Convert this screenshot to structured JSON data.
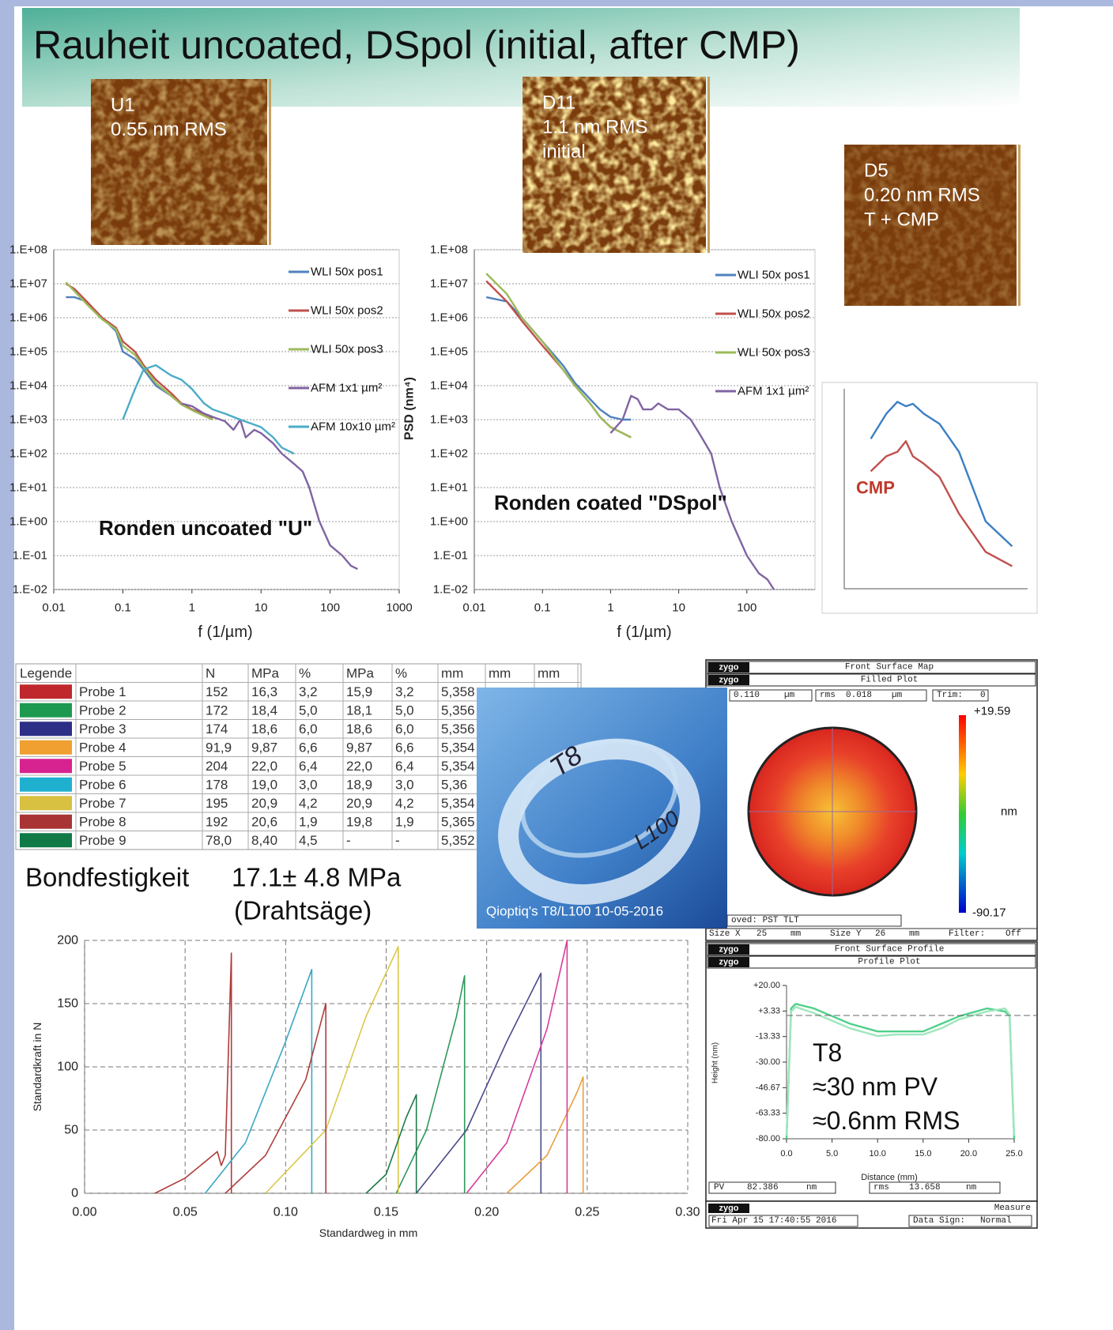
{
  "title": "Rauheit uncoated, DSpol (initial, after CMP)",
  "afm_images": [
    {
      "lines": [
        "U1",
        "0.55 nm RMS"
      ]
    },
    {
      "lines": [
        "D11",
        "1.1 nm RMS",
        "initial"
      ]
    },
    {
      "lines": [
        "D5",
        "0.20 nm RMS",
        "T + CMP"
      ]
    }
  ],
  "chart_data": [
    {
      "type": "line",
      "xscale": "log",
      "yscale": "log",
      "grid": "y",
      "legend": "right",
      "xlabel": "f (1/µm)",
      "annotation": [
        "Ronden uncoated \"U\""
      ],
      "xlim": [
        0.01,
        1000
      ],
      "ylim": [
        0.01,
        100000000
      ],
      "xticks": [
        0.01,
        0.1,
        1,
        10,
        100,
        1000
      ],
      "yticks": [
        {
          "value": 100000000,
          "label": "1.E+08"
        },
        {
          "value": 10000000,
          "label": "1.E+07"
        },
        {
          "value": 1000000,
          "label": "1.E+06"
        },
        {
          "value": 100000,
          "label": "1.E+05"
        },
        {
          "value": 10000,
          "label": "1.E+04"
        },
        {
          "value": 1000,
          "label": "1.E+03"
        },
        {
          "value": 100,
          "label": "1.E+02"
        },
        {
          "value": 10,
          "label": "1.E+01"
        },
        {
          "value": 1,
          "label": "1.E+00"
        },
        {
          "value": 0.1,
          "label": "1.E-01"
        },
        {
          "value": 0.01,
          "label": "1.E-02"
        }
      ],
      "series": [
        {
          "name": "WLI 50x pos1",
          "color": "#4f81bd",
          "x": [
            0.015,
            0.02,
            0.03,
            0.05,
            0.08,
            0.1,
            0.15,
            0.2,
            0.3,
            0.5,
            0.7,
            1,
            1.5,
            2
          ],
          "values": [
            4000000,
            4000000,
            3000000,
            1000000,
            400000,
            100000,
            60000,
            30000,
            10000,
            5000,
            3000,
            2000,
            1500,
            1200
          ]
        },
        {
          "name": "WLI 50x pos2",
          "color": "#c0504d",
          "x": [
            0.015,
            0.02,
            0.03,
            0.05,
            0.08,
            0.1,
            0.15,
            0.2,
            0.3,
            0.5,
            0.7,
            1,
            1.5,
            2
          ],
          "values": [
            10000000,
            7000000,
            3000000,
            1000000,
            500000,
            200000,
            100000,
            40000,
            15000,
            6000,
            3000,
            2000,
            1400,
            1100
          ]
        },
        {
          "name": "WLI 50x pos3",
          "color": "#9bbb59",
          "x": [
            0.015,
            0.02,
            0.03,
            0.05,
            0.08,
            0.1,
            0.15,
            0.2,
            0.3,
            0.5,
            0.7,
            1,
            1.5,
            2
          ],
          "values": [
            11000000,
            6000000,
            2500000,
            900000,
            450000,
            150000,
            80000,
            35000,
            12000,
            5000,
            2800,
            1900,
            1300,
            1000
          ]
        },
        {
          "name": "AFM 1x1 µm²",
          "color": "#8064a2",
          "x": [
            0.7,
            1,
            1.5,
            2,
            3,
            4,
            5,
            6,
            8,
            10,
            15,
            20,
            30,
            40,
            50,
            70,
            100,
            150,
            200,
            250
          ],
          "values": [
            3000,
            2500,
            1500,
            1200,
            900,
            500,
            1000,
            300,
            500,
            400,
            200,
            100,
            50,
            30,
            10,
            1,
            0.2,
            0.1,
            0.05,
            0.04
          ]
        },
        {
          "name": "AFM 10x10 µm²",
          "color": "#4bacc6",
          "x": [
            0.1,
            0.15,
            0.2,
            0.3,
            0.5,
            0.7,
            1,
            1.5,
            2,
            3,
            5,
            10,
            15,
            20,
            30
          ],
          "values": [
            1000,
            8000,
            30000,
            40000,
            20000,
            15000,
            8000,
            3000,
            2000,
            1500,
            1000,
            600,
            300,
            150,
            100
          ]
        }
      ]
    },
    {
      "type": "line",
      "xscale": "log",
      "yscale": "log",
      "grid": "y",
      "legend": "right",
      "xlabel": "f (1/µm)",
      "ylabel": "PSD (nm⁴)",
      "annotation": [
        "Ronden coated \"DSpol\""
      ],
      "xlim": [
        0.01,
        1000
      ],
      "ylim": [
        0.01,
        100000000
      ],
      "xticks": [
        0.01,
        0.1,
        1,
        10,
        100
      ],
      "yticks": [
        {
          "value": 100000000,
          "label": "1.E+08"
        },
        {
          "value": 10000000,
          "label": "1.E+07"
        },
        {
          "value": 1000000,
          "label": "1.E+06"
        },
        {
          "value": 100000,
          "label": "1.E+05"
        },
        {
          "value": 10000,
          "label": "1.E+04"
        },
        {
          "value": 1000,
          "label": "1.E+03"
        },
        {
          "value": 100,
          "label": "1.E+02"
        },
        {
          "value": 10,
          "label": "1.E+01"
        },
        {
          "value": 1,
          "label": "1.E+00"
        },
        {
          "value": 0.1,
          "label": "1.E-01"
        },
        {
          "value": 0.01,
          "label": "1.E-02"
        }
      ],
      "series": [
        {
          "name": "WLI 50x pos1",
          "color": "#4f81bd",
          "x": [
            0.015,
            0.03,
            0.05,
            0.1,
            0.2,
            0.3,
            0.5,
            0.7,
            1,
            1.5,
            2
          ],
          "values": [
            4000000,
            3000000,
            1000000,
            200000,
            40000,
            12000,
            4000,
            2000,
            1200,
            1000,
            1000
          ]
        },
        {
          "name": "WLI 50x pos2",
          "color": "#c0504d",
          "x": [
            0.015,
            0.03,
            0.05,
            0.1,
            0.2,
            0.3,
            0.5,
            0.7,
            1,
            1.5,
            2
          ],
          "values": [
            12000000,
            3000000,
            800000,
            150000,
            30000,
            10000,
            3000,
            1200,
            600,
            400,
            300
          ]
        },
        {
          "name": "WLI 50x pos3",
          "color": "#9bbb59",
          "x": [
            0.015,
            0.03,
            0.05,
            0.1,
            0.2,
            0.3,
            0.5,
            0.7,
            1,
            1.5,
            2
          ],
          "values": [
            20000000,
            5000000,
            1000000,
            200000,
            30000,
            10000,
            3000,
            1200,
            600,
            400,
            300
          ]
        },
        {
          "name": "AFM 1x1 µm²",
          "color": "#8064a2",
          "x": [
            1,
            1.5,
            2,
            2.5,
            3,
            4,
            5,
            7,
            10,
            15,
            20,
            30,
            40,
            60,
            100,
            150,
            200,
            250
          ],
          "values": [
            400,
            1000,
            5000,
            4000,
            2000,
            2000,
            3000,
            2000,
            2000,
            1000,
            400,
            100,
            10,
            1,
            0.1,
            0.03,
            0.02,
            0.01
          ]
        }
      ]
    },
    {
      "type": "line",
      "xscale": "log",
      "yscale": "log",
      "annotation": [
        "CMP"
      ],
      "annotation_color": "#c0392b",
      "xlim": [
        0.5,
        60
      ],
      "ylim": [
        1e-05,
        1000
      ],
      "series": [
        {
          "color": "#3a7fc4",
          "x": [
            1,
            1.5,
            2,
            2.5,
            3,
            4,
            6,
            10,
            20,
            40
          ],
          "values": [
            10,
            100,
            300,
            200,
            250,
            100,
            40,
            3,
            0.005,
            0.0005
          ]
        },
        {
          "color": "#c0504d",
          "x": [
            1,
            1.5,
            2,
            2.5,
            3,
            4,
            6,
            10,
            20,
            40
          ],
          "values": [
            0.5,
            2,
            3,
            8,
            2,
            1,
            0.3,
            0.01,
            0.0003,
            8e-05
          ]
        }
      ]
    },
    {
      "type": "line",
      "grid": "both",
      "xlabel": "Standardweg in mm",
      "ylabel": "Standardkraft in N",
      "xlim": [
        0,
        0.3
      ],
      "ylim": [
        0,
        200
      ],
      "xticks": [
        {
          "value": 0,
          "label": "0.00"
        },
        0.05,
        {
          "value": 0.1,
          "label": "0.10"
        },
        0.15,
        {
          "value": 0.2,
          "label": "0.20"
        },
        0.25,
        {
          "value": 0.3,
          "label": "0.30"
        }
      ],
      "yticks": [
        0,
        50,
        100,
        150,
        200
      ],
      "series": [
        {
          "color": "#b03a3a",
          "x": [
            0.035,
            0.05,
            0.06,
            0.066,
            0.068,
            0.07,
            0.073,
            0.073
          ],
          "values": [
            0,
            12,
            25,
            33,
            22,
            30,
            190,
            0
          ]
        },
        {
          "color": "#2e9a5a",
          "x": [
            0.155,
            0.17,
            0.185,
            0.189,
            0.189
          ],
          "values": [
            0,
            50,
            140,
            172,
            0
          ]
        },
        {
          "color": "#4a4a8a",
          "x": [
            0.165,
            0.19,
            0.21,
            0.227,
            0.227
          ],
          "values": [
            0,
            50,
            120,
            174,
            0
          ]
        },
        {
          "color": "#e8a040",
          "x": [
            0.21,
            0.23,
            0.245,
            0.248,
            0.248
          ],
          "values": [
            0,
            30,
            80,
            92,
            0
          ]
        },
        {
          "color": "#d63c9c",
          "x": [
            0.19,
            0.21,
            0.23,
            0.24,
            0.24
          ],
          "values": [
            0,
            40,
            130,
            200,
            0
          ]
        },
        {
          "color": "#3aa7c4",
          "x": [
            0.06,
            0.08,
            0.1,
            0.113,
            0.113
          ],
          "values": [
            0,
            40,
            120,
            177,
            0
          ]
        },
        {
          "color": "#d9c84a",
          "x": [
            0.09,
            0.12,
            0.14,
            0.156,
            0.156
          ],
          "values": [
            0,
            50,
            140,
            195,
            0
          ]
        },
        {
          "color": "#b04040",
          "x": [
            0.07,
            0.09,
            0.11,
            0.12,
            0.12
          ],
          "values": [
            0,
            30,
            90,
            150,
            0
          ]
        },
        {
          "color": "#1e7a4a",
          "x": [
            0.14,
            0.15,
            0.16,
            0.165,
            0.165
          ],
          "values": [
            0,
            15,
            60,
            78,
            0
          ]
        }
      ]
    },
    {
      "type": "line",
      "xlabel": "Distance (mm)",
      "ylabel": "Height (nm)",
      "annotation": [
        "T8",
        "≈30 nm PV",
        "≈0.6nm RMS"
      ],
      "xlim": [
        0,
        25
      ],
      "ylim": [
        -80,
        20
      ],
      "xticks": [
        {
          "value": 0,
          "label": "0.0"
        },
        {
          "value": 5,
          "label": "5.0"
        },
        {
          "value": 10,
          "label": "10.0"
        },
        {
          "value": 15,
          "label": "15.0"
        },
        {
          "value": 20,
          "label": "20.0"
        },
        {
          "value": 25,
          "label": "25.0"
        }
      ],
      "yticks": [
        {
          "value": 20,
          "label": "+20.00"
        },
        {
          "value": 3.33,
          "label": "+3.33"
        },
        -13.33,
        {
          "value": -30,
          "label": "-30.00"
        },
        -46.67,
        -63.33,
        {
          "value": -80,
          "label": "-80.00"
        }
      ],
      "series": [
        {
          "color": "#4fd08a",
          "x": [
            0,
            0.5,
            1,
            3,
            5,
            7,
            10,
            12,
            15,
            17,
            19,
            22,
            24,
            24.5,
            25
          ],
          "values": [
            -80,
            5,
            8,
            5,
            0,
            -5,
            -10,
            -10,
            -10,
            -5,
            0,
            5,
            3,
            0,
            -80
          ]
        },
        {
          "color": "#9fe6bd",
          "x": [
            0,
            0.5,
            1,
            3,
            5,
            7,
            10,
            12,
            15,
            17,
            19,
            22,
            24,
            24.5,
            25
          ],
          "values": [
            -78,
            3,
            6,
            2,
            -3,
            -8,
            -13,
            -12,
            -12,
            -8,
            -2,
            3,
            5,
            1,
            -78
          ]
        }
      ]
    }
  ],
  "table": {
    "header": [
      "Legende",
      "N",
      "MPa",
      "%",
      "MPa",
      "%",
      "mm",
      "mm",
      "mm"
    ],
    "rows": [
      {
        "color": "#c0272d",
        "name": "Probe 1",
        "cells": [
          "152",
          "16,3",
          "3,2",
          "15,9",
          "3,2",
          "5,358"
        ]
      },
      {
        "color": "#1e9a50",
        "name": "Probe 2",
        "cells": [
          "172",
          "18,4",
          "5,0",
          "18,1",
          "5,0",
          "5,356"
        ]
      },
      {
        "color": "#2c2f85",
        "name": "Probe 3",
        "cells": [
          "174",
          "18,6",
          "6,0",
          "18,6",
          "6,0",
          "5,356"
        ]
      },
      {
        "color": "#f0a030",
        "name": "Probe 4",
        "cells": [
          "91,9",
          "9,87",
          "6,6",
          "9,87",
          "6,6",
          "5,354"
        ]
      },
      {
        "color": "#d6238f",
        "name": "Probe 5",
        "cells": [
          "204",
          "22,0",
          "6,4",
          "22,0",
          "6,4",
          "5,354"
        ]
      },
      {
        "color": "#1fb0d0",
        "name": "Probe 6",
        "cells": [
          "178",
          "19,0",
          "3,0",
          "18,9",
          "3,0",
          "5,36"
        ]
      },
      {
        "color": "#d8c040",
        "name": "Probe 7",
        "cells": [
          "195",
          "20,9",
          "4,2",
          "20,9",
          "4,2",
          "5,354"
        ]
      },
      {
        "color": "#a83434",
        "name": "Probe 8",
        "cells": [
          "192",
          "20,6",
          "1,9",
          "19,8",
          "1,9",
          "5,365"
        ]
      },
      {
        "color": "#0f7a46",
        "name": "Probe 9",
        "cells": [
          "78,0",
          "8,40",
          "4,5",
          "-",
          "-",
          "5,352"
        ]
      }
    ]
  },
  "bond": {
    "label": "Bondfestigkeit",
    "value": "17.1± 4.8 MPa",
    "method": "(Drahtsäge)"
  },
  "photo": {
    "marks": [
      "T8",
      "L100"
    ],
    "caption": "Qioptiq's T8/L100 10-05-2016"
  },
  "zygo_map": {
    "logo": "zygo",
    "title": "Front Surface Map",
    "subtitle": "Filled Plot",
    "fields": [
      "0.110",
      "µm",
      "rms",
      "0.018",
      "µm",
      "Trim:",
      "0"
    ],
    "colorbar_max": "+19.59",
    "colorbar_min": "-90.17",
    "unit": "nm",
    "footer": [
      "oved: PST TLT",
      "Size X",
      "25",
      "mm",
      "Size Y",
      "26",
      "mm",
      "Filter:",
      "Off"
    ]
  },
  "zygo_profile": {
    "logo": "zygo",
    "title": "Front Surface Profile",
    "subtitle": "Profile Plot",
    "footer": [
      "PV",
      "82.386",
      "nm",
      "rms",
      "13.658",
      "nm"
    ],
    "status": [
      "Measure",
      "Fri Apr 15 17:40:55 2016",
      "Data Sign:",
      "Normal"
    ]
  }
}
